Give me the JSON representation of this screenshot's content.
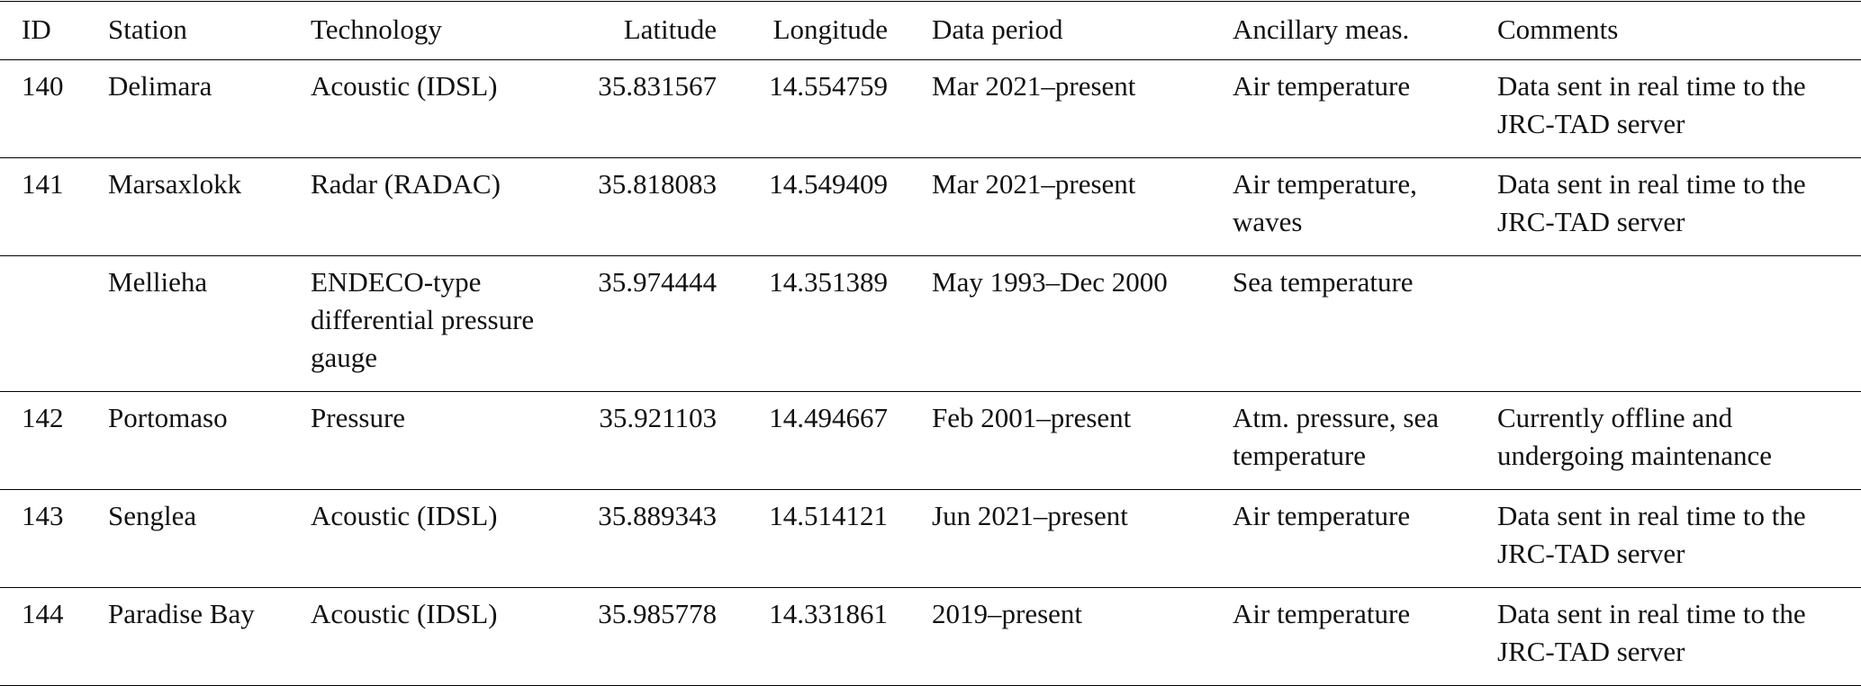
{
  "table": {
    "header": [
      "ID",
      "Station",
      "Technology",
      "Latitude",
      "Longitude",
      "Data period",
      "Ancillary meas.",
      "Comments"
    ],
    "rows": [
      [
        "140",
        "Delimara",
        "Acoustic (IDSL)",
        "35.831567",
        "14.554759",
        "Mar 2021–present",
        "Air temperature",
        "Data sent in real time to the JRC-TAD server"
      ],
      [
        "141",
        "Marsaxlokk",
        "Radar (RADAC)",
        "35.818083",
        "14.549409",
        "Mar 2021–present",
        "Air temperature, waves",
        "Data sent in real time to the JRC-TAD server"
      ],
      [
        null,
        "Mellieha",
        "ENDECO-type differential pressure gauge",
        "35.974444",
        "14.351389",
        "May 1993–Dec 2000",
        "Sea temperature",
        null
      ],
      [
        "142",
        "Portomaso",
        "Pressure",
        "35.921103",
        "14.494667",
        "Feb 2001–present",
        "Atm. pressure, sea temperature",
        "Currently offline and undergoing maintenance"
      ],
      [
        "143",
        "Senglea",
        "Acoustic (IDSL)",
        "35.889343",
        "14.514121",
        "Jun 2021–present",
        "Air temperature",
        "Data sent in real time to the JRC-TAD server"
      ],
      [
        "144",
        "Paradise Bay",
        "Acoustic (IDSL)",
        "35.985778",
        "14.331861",
        "2019–present",
        "Air temperature",
        "Data sent in real time to the JRC-TAD server"
      ]
    ]
  }
}
